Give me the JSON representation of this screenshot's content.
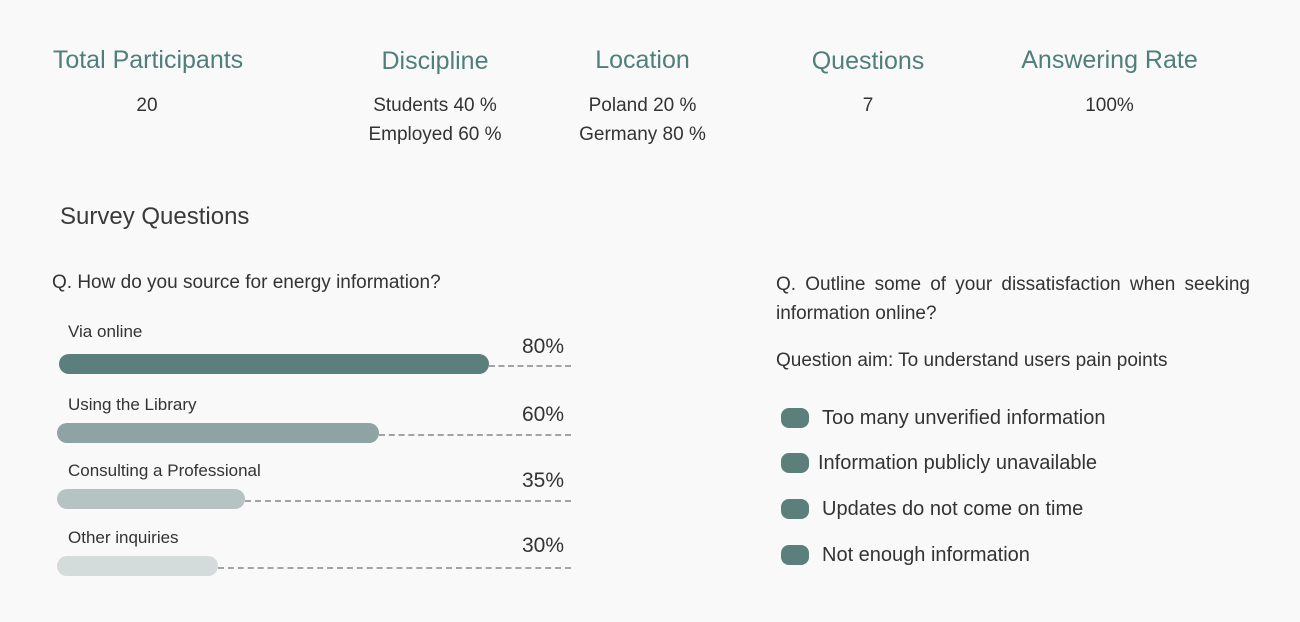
{
  "stats": [
    {
      "title": "Total Participants",
      "values": [
        "20"
      ]
    },
    {
      "title": "Discipline",
      "values": [
        "Students 40 %",
        "Employed 60 %"
      ]
    },
    {
      "title": "Location",
      "values": [
        "Poland 20 %",
        "Germany 80 %"
      ]
    },
    {
      "title": "Questions",
      "values": [
        "7"
      ]
    },
    {
      "title": "Answering Rate",
      "values": [
        "100%"
      ]
    }
  ],
  "section_title": "Survey Questions",
  "question1": {
    "text": "Q. How do you source for energy information?",
    "answers": [
      {
        "label": "Via online",
        "percent_text": "80%",
        "value": 80,
        "color": "#5b7f7b"
      },
      {
        "label": "Using the Library",
        "percent_text": "60%",
        "value": 60,
        "color": "#8da4a2"
      },
      {
        "label": "Consulting a Professional",
        "percent_text": "35%",
        "value": 35,
        "color": "#b5c4c2"
      },
      {
        "label": "Other inquiries",
        "percent_text": "30%",
        "value": 30,
        "color": "#d3dcdb"
      }
    ]
  },
  "question2": {
    "text": "Q. Outline some of your dissatisfaction when seeking information online?",
    "aim": "Question aim: To understand users pain points",
    "pain_points": [
      "Too many unverified information",
      "Information publicly unavailable",
      "Updates do not come on time",
      "Not enough information"
    ],
    "bullet_color": "#5b7f7b"
  }
}
